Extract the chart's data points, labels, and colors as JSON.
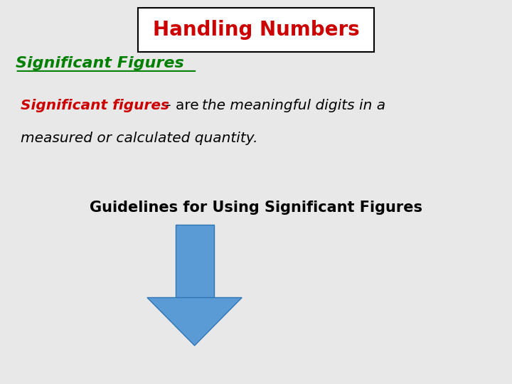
{
  "bg_color": "#e8e8e8",
  "title_text": "Handling Numbers",
  "title_color": "#cc0000",
  "title_box_color": "#ffffff",
  "title_box_edge": "#000000",
  "subtitle_text": "Significant Figures",
  "subtitle_color": "#008000",
  "line1_red": "Significant figures",
  "line1_dash": " - are ",
  "line1_italic": "the meaningful digits in a",
  "line2_italic": "measured or calculated quantity.",
  "guidelines_text": "Guidelines for Using Significant Figures",
  "guidelines_color": "#000000",
  "arrow_color": "#5b9bd5",
  "arrow_edge_color": "#2e75b6",
  "title_fontsize": 20,
  "subtitle_fontsize": 16,
  "body_fontsize": 14.5,
  "guidelines_fontsize": 15
}
